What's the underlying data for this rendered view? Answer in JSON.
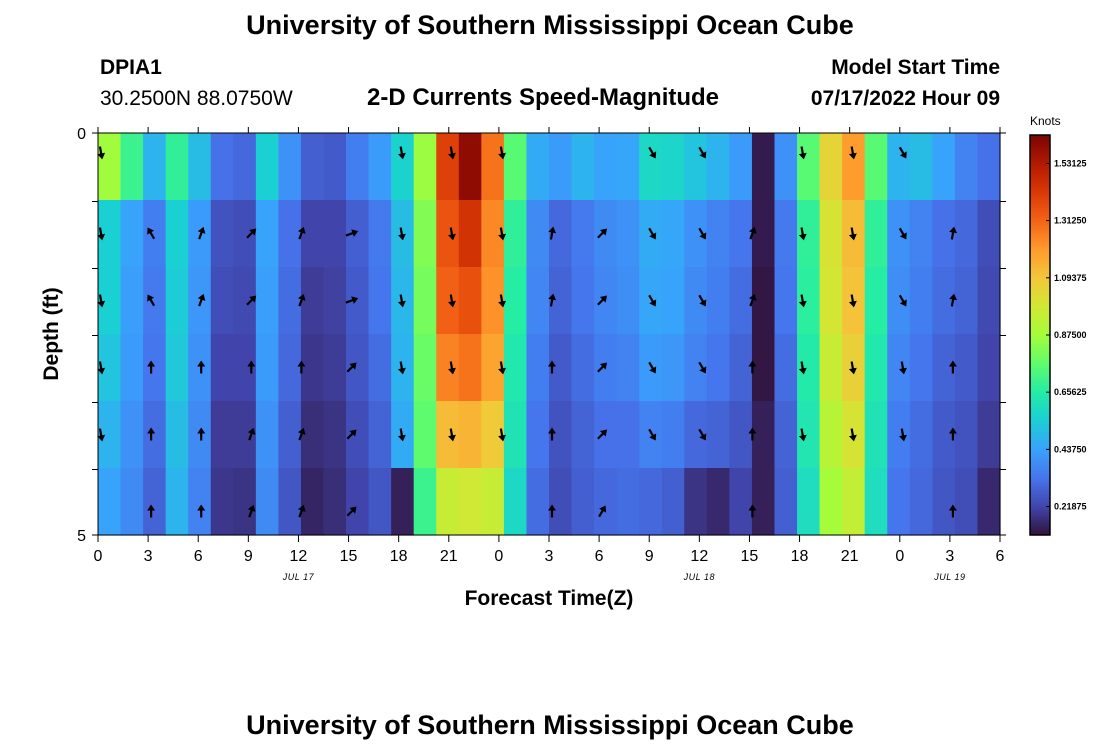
{
  "header": {
    "title": "University of Southern Mississippi Ocean Cube",
    "station": "DPIA1",
    "coords": "30.2500N  88.0750W",
    "model_start_label": "Model Start Time",
    "model_start_value": "07/17/2022 Hour 09"
  },
  "footer": {
    "next_title": "University of Southern Mississippi Ocean Cube"
  },
  "chart_data": {
    "type": "heatmap",
    "title": "2-D Currents Speed-Magnitude",
    "xlabel": "Forecast Time(Z)",
    "ylabel": "Depth (ft)",
    "x_tick_labels": [
      "0",
      "3",
      "6",
      "9",
      "12",
      "15",
      "18",
      "21",
      "0",
      "3",
      "6",
      "9",
      "12",
      "15",
      "18",
      "21",
      "0",
      "3",
      "6"
    ],
    "date_labels": [
      {
        "text": "JUL 17",
        "at_tick": 4
      },
      {
        "text": "JUL 18",
        "at_tick": 12
      },
      {
        "text": "JUL 19",
        "at_tick": 17
      }
    ],
    "y_tick_labels": [
      {
        "text": "0",
        "depth": 0
      },
      {
        "text": "5",
        "depth": 5
      }
    ],
    "y_range_ft": [
      0,
      5
    ],
    "x_range_hours": [
      0,
      54
    ],
    "colorbar": {
      "unit": "Knots",
      "range": [
        0.11,
        1.64
      ],
      "ticks": [
        "1.53125",
        "1.31250",
        "1.09375",
        "0.87500",
        "0.65625",
        "0.43750",
        "0.21875"
      ],
      "colors": [
        "#30123b",
        "#4145ab",
        "#4675ed",
        "#39a2fc",
        "#1bcfd4",
        "#24eca6",
        "#61fc6c",
        "#a4fc3b",
        "#d1e834",
        "#f3c63a",
        "#fe9b2d",
        "#f36315",
        "#d93806",
        "#b11901",
        "#7a0402"
      ]
    },
    "speed_grid_knots": [
      [
        0.87,
        0.7,
        0.48,
        0.68,
        0.5,
        0.32,
        0.3,
        0.55,
        0.4,
        0.28,
        0.27,
        0.35,
        0.42,
        0.56,
        0.86,
        1.4,
        1.6,
        1.28,
        0.75,
        0.46,
        0.42,
        0.48,
        0.44,
        0.45,
        0.58,
        0.57,
        0.52,
        0.48,
        0.42,
        0.13,
        0.4,
        0.75,
        1.05,
        1.2,
        0.75,
        0.48,
        0.5,
        0.44,
        0.36,
        0.32
      ],
      [
        0.55,
        0.44,
        0.35,
        0.55,
        0.42,
        0.25,
        0.24,
        0.44,
        0.32,
        0.22,
        0.22,
        0.28,
        0.34,
        0.5,
        0.82,
        1.35,
        1.44,
        1.24,
        0.68,
        0.38,
        0.3,
        0.34,
        0.38,
        0.4,
        0.46,
        0.45,
        0.4,
        0.36,
        0.33,
        0.13,
        0.34,
        0.68,
        1.0,
        1.12,
        0.68,
        0.4,
        0.36,
        0.32,
        0.3,
        0.24
      ],
      [
        0.55,
        0.43,
        0.34,
        0.54,
        0.41,
        0.24,
        0.23,
        0.43,
        0.31,
        0.2,
        0.21,
        0.27,
        0.33,
        0.49,
        0.8,
        1.32,
        1.36,
        1.22,
        0.66,
        0.37,
        0.29,
        0.33,
        0.37,
        0.39,
        0.45,
        0.44,
        0.38,
        0.35,
        0.31,
        0.12,
        0.33,
        0.67,
        0.99,
        1.1,
        0.66,
        0.39,
        0.35,
        0.31,
        0.29,
        0.23
      ],
      [
        0.52,
        0.42,
        0.33,
        0.53,
        0.4,
        0.22,
        0.22,
        0.42,
        0.3,
        0.19,
        0.2,
        0.26,
        0.31,
        0.48,
        0.78,
        1.25,
        1.28,
        1.18,
        0.64,
        0.35,
        0.27,
        0.31,
        0.35,
        0.36,
        0.42,
        0.41,
        0.36,
        0.33,
        0.29,
        0.12,
        0.31,
        0.65,
        0.96,
        1.06,
        0.64,
        0.37,
        0.33,
        0.29,
        0.27,
        0.22
      ],
      [
        0.48,
        0.4,
        0.31,
        0.5,
        0.38,
        0.2,
        0.2,
        0.4,
        0.28,
        0.17,
        0.18,
        0.24,
        0.29,
        0.46,
        0.76,
        1.12,
        1.14,
        1.08,
        0.62,
        0.33,
        0.25,
        0.29,
        0.32,
        0.32,
        0.36,
        0.35,
        0.3,
        0.29,
        0.26,
        0.14,
        0.29,
        0.63,
        0.92,
        1.0,
        0.62,
        0.35,
        0.31,
        0.27,
        0.25,
        0.2
      ],
      [
        0.44,
        0.38,
        0.29,
        0.48,
        0.36,
        0.19,
        0.18,
        0.38,
        0.26,
        0.15,
        0.17,
        0.22,
        0.26,
        0.14,
        0.7,
        0.96,
        0.98,
        0.96,
        0.58,
        0.31,
        0.24,
        0.28,
        0.3,
        0.31,
        0.3,
        0.28,
        0.18,
        0.16,
        0.22,
        0.14,
        0.28,
        0.6,
        0.88,
        0.95,
        0.6,
        0.33,
        0.3,
        0.26,
        0.24,
        0.16
      ]
    ],
    "vector_columns_tick_index": [
      0,
      1,
      2,
      3,
      4,
      5,
      6,
      7,
      8,
      9,
      10,
      11,
      12,
      13,
      14,
      15,
      16,
      17
    ],
    "vector_directions_deg": [
      [
        170,
        null,
        null,
        null,
        null,
        null,
        170,
        170,
        170,
        null,
        null,
        150,
        150,
        null,
        170,
        170,
        150,
        null
      ],
      [
        170,
        330,
        20,
        45,
        20,
        70,
        170,
        170,
        170,
        10,
        45,
        150,
        150,
        20,
        170,
        170,
        150,
        10
      ],
      [
        170,
        330,
        20,
        45,
        20,
        70,
        170,
        170,
        170,
        10,
        45,
        150,
        150,
        20,
        170,
        170,
        150,
        10
      ],
      [
        170,
        0,
        0,
        0,
        0,
        45,
        170,
        170,
        170,
        0,
        45,
        150,
        150,
        0,
        170,
        170,
        170,
        0
      ],
      [
        170,
        0,
        0,
        20,
        20,
        45,
        170,
        170,
        170,
        0,
        45,
        150,
        150,
        0,
        170,
        170,
        170,
        0
      ],
      [
        null,
        0,
        0,
        20,
        20,
        45,
        null,
        null,
        null,
        0,
        30,
        null,
        null,
        0,
        null,
        null,
        null,
        0
      ]
    ]
  }
}
